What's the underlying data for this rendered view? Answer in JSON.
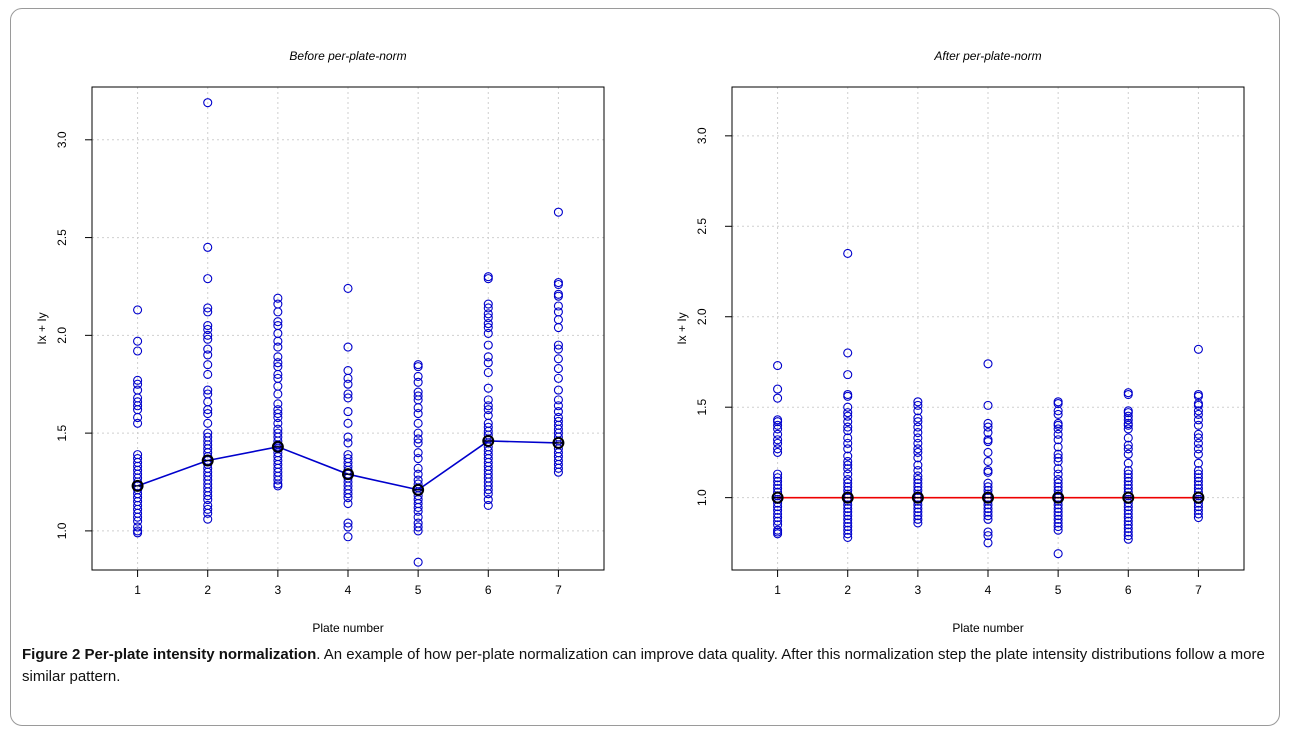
{
  "chart_data": [
    {
      "type": "scatter",
      "title": "Before per-plate-norm",
      "xlabel": "Plate number",
      "ylabel": "Ix + Iy",
      "xticks": [
        "1",
        "2",
        "3",
        "4",
        "5",
        "6",
        "7"
      ],
      "yticks": [
        "1.0",
        "1.5",
        "2.0",
        "2.5",
        "3.0"
      ],
      "xlim": [
        0.35,
        7.65
      ],
      "ylim": [
        0.8,
        3.27
      ],
      "grid": true,
      "point_color": "#0000cc",
      "line_color": "#0000cc",
      "marker_color": "#000000",
      "series": [
        {
          "x": 1,
          "values": [
            2.13,
            1.97,
            1.92,
            1.77,
            1.75,
            1.72,
            1.68,
            1.66,
            1.64,
            1.62,
            1.58,
            1.55,
            1.39,
            1.37,
            1.35,
            1.33,
            1.31,
            1.29,
            1.27,
            1.25,
            1.23,
            1.21,
            1.19,
            1.17,
            1.15,
            1.13,
            1.11,
            1.09,
            1.07,
            1.05,
            1.02,
            1.0,
            0.99
          ]
        },
        {
          "x": 2,
          "values": [
            3.19,
            2.45,
            2.29,
            2.14,
            2.12,
            2.05,
            2.03,
            2.0,
            1.98,
            1.93,
            1.9,
            1.85,
            1.8,
            1.72,
            1.7,
            1.66,
            1.62,
            1.6,
            1.55,
            1.5,
            1.48,
            1.46,
            1.44,
            1.42,
            1.4,
            1.38,
            1.36,
            1.34,
            1.32,
            1.3,
            1.28,
            1.26,
            1.24,
            1.22,
            1.2,
            1.18,
            1.16,
            1.13,
            1.11,
            1.09,
            1.06
          ]
        },
        {
          "x": 3,
          "values": [
            2.19,
            2.16,
            2.12,
            2.07,
            2.05,
            2.01,
            1.97,
            1.94,
            1.89,
            1.86,
            1.84,
            1.8,
            1.78,
            1.74,
            1.7,
            1.65,
            1.62,
            1.6,
            1.58,
            1.55,
            1.52,
            1.5,
            1.48,
            1.46,
            1.44,
            1.43,
            1.42,
            1.4,
            1.38,
            1.36,
            1.34,
            1.32,
            1.3,
            1.28,
            1.26,
            1.24,
            1.23
          ]
        },
        {
          "x": 4,
          "values": [
            2.24,
            1.94,
            1.82,
            1.78,
            1.75,
            1.7,
            1.68,
            1.61,
            1.55,
            1.48,
            1.45,
            1.39,
            1.37,
            1.35,
            1.33,
            1.31,
            1.29,
            1.27,
            1.25,
            1.23,
            1.21,
            1.19,
            1.17,
            1.14,
            1.04,
            1.02,
            0.97
          ]
        },
        {
          "x": 5,
          "values": [
            1.85,
            1.84,
            1.79,
            1.76,
            1.71,
            1.69,
            1.67,
            1.63,
            1.6,
            1.55,
            1.5,
            1.47,
            1.45,
            1.4,
            1.37,
            1.32,
            1.29,
            1.26,
            1.24,
            1.22,
            1.2,
            1.18,
            1.16,
            1.14,
            1.12,
            1.1,
            1.07,
            1.04,
            1.02,
            1.0,
            0.84
          ]
        },
        {
          "x": 6,
          "values": [
            2.3,
            2.29,
            2.16,
            2.14,
            2.11,
            2.09,
            2.06,
            2.04,
            2.01,
            1.95,
            1.89,
            1.86,
            1.81,
            1.73,
            1.67,
            1.64,
            1.62,
            1.59,
            1.55,
            1.53,
            1.51,
            1.49,
            1.47,
            1.45,
            1.43,
            1.41,
            1.39,
            1.37,
            1.35,
            1.33,
            1.31,
            1.29,
            1.27,
            1.25,
            1.23,
            1.21,
            1.19,
            1.16,
            1.13
          ]
        },
        {
          "x": 7,
          "values": [
            2.63,
            2.27,
            2.26,
            2.21,
            2.2,
            2.15,
            2.12,
            2.08,
            2.04,
            1.95,
            1.93,
            1.88,
            1.83,
            1.78,
            1.72,
            1.67,
            1.64,
            1.61,
            1.58,
            1.56,
            1.54,
            1.52,
            1.5,
            1.48,
            1.46,
            1.44,
            1.42,
            1.4,
            1.38,
            1.36,
            1.34,
            1.32,
            1.3
          ]
        }
      ],
      "medians": [
        1.23,
        1.36,
        1.43,
        1.29,
        1.21,
        1.46,
        1.45
      ]
    },
    {
      "type": "scatter",
      "title": "After per-plate-norm",
      "xlabel": "Plate number",
      "ylabel": "Ix + Iy",
      "xticks": [
        "1",
        "2",
        "3",
        "4",
        "5",
        "6",
        "7"
      ],
      "yticks": [
        "1.0",
        "1.5",
        "2.0",
        "2.5",
        "3.0"
      ],
      "xlim": [
        0.35,
        7.65
      ],
      "ylim": [
        0.6,
        3.27
      ],
      "grid": true,
      "point_color": "#0000cc",
      "line_color": "#ee0000",
      "marker_color": "#000000",
      "series": [
        {
          "x": 1,
          "values": [
            1.73,
            1.6,
            1.55,
            1.43,
            1.42,
            1.4,
            1.38,
            1.35,
            1.32,
            1.3,
            1.27,
            1.25,
            1.13,
            1.11,
            1.09,
            1.07,
            1.05,
            1.03,
            1.01,
            0.99,
            0.97,
            0.95,
            0.93,
            0.91,
            0.89,
            0.87,
            0.85,
            0.82,
            0.81,
            0.8
          ]
        },
        {
          "x": 2,
          "values": [
            2.35,
            1.8,
            1.68,
            1.57,
            1.56,
            1.5,
            1.47,
            1.45,
            1.42,
            1.39,
            1.37,
            1.33,
            1.3,
            1.27,
            1.23,
            1.2,
            1.18,
            1.16,
            1.13,
            1.1,
            1.08,
            1.06,
            1.04,
            1.02,
            1.0,
            0.98,
            0.96,
            0.94,
            0.92,
            0.9,
            0.88,
            0.86,
            0.84,
            0.82,
            0.8,
            0.78
          ]
        },
        {
          "x": 3,
          "values": [
            1.53,
            1.51,
            1.48,
            1.44,
            1.42,
            1.39,
            1.36,
            1.33,
            1.3,
            1.27,
            1.25,
            1.22,
            1.18,
            1.15,
            1.12,
            1.1,
            1.08,
            1.06,
            1.04,
            1.02,
            1.0,
            0.98,
            0.96,
            0.94,
            0.92,
            0.9,
            0.88,
            0.86
          ]
        },
        {
          "x": 4,
          "values": [
            1.74,
            1.51,
            1.41,
            1.39,
            1.36,
            1.32,
            1.31,
            1.25,
            1.2,
            1.15,
            1.14,
            1.08,
            1.06,
            1.04,
            1.02,
            1.0,
            0.98,
            0.96,
            0.94,
            0.92,
            0.9,
            0.88,
            0.81,
            0.79,
            0.75
          ]
        },
        {
          "x": 5,
          "values": [
            1.53,
            1.52,
            1.48,
            1.46,
            1.41,
            1.4,
            1.38,
            1.35,
            1.32,
            1.28,
            1.24,
            1.22,
            1.2,
            1.16,
            1.13,
            1.1,
            1.08,
            1.06,
            1.04,
            1.02,
            1.0,
            0.98,
            0.96,
            0.94,
            0.92,
            0.9,
            0.88,
            0.86,
            0.84,
            0.82,
            0.69
          ]
        },
        {
          "x": 6,
          "values": [
            1.58,
            1.57,
            1.48,
            1.47,
            1.45,
            1.43,
            1.41,
            1.4,
            1.38,
            1.33,
            1.29,
            1.27,
            1.24,
            1.19,
            1.15,
            1.13,
            1.11,
            1.09,
            1.07,
            1.05,
            1.03,
            1.01,
            0.99,
            0.97,
            0.95,
            0.93,
            0.91,
            0.89,
            0.87,
            0.85,
            0.83,
            0.81,
            0.79,
            0.77
          ]
        },
        {
          "x": 7,
          "values": [
            1.82,
            1.57,
            1.56,
            1.52,
            1.51,
            1.48,
            1.46,
            1.43,
            1.4,
            1.35,
            1.33,
            1.3,
            1.27,
            1.24,
            1.19,
            1.15,
            1.13,
            1.11,
            1.09,
            1.07,
            1.05,
            1.03,
            1.01,
            0.99,
            0.97,
            0.95,
            0.93,
            0.91,
            0.89
          ]
        }
      ],
      "medians": [
        1.0,
        1.0,
        1.0,
        1.0,
        1.0,
        1.0,
        1.0
      ]
    }
  ],
  "caption": {
    "label": "Figure 2",
    "title": "Per-plate intensity normalization",
    "text": ". An example of how per-plate normalization can improve data quality. After this normalization step the plate intensity distributions follow a more similar pattern."
  }
}
